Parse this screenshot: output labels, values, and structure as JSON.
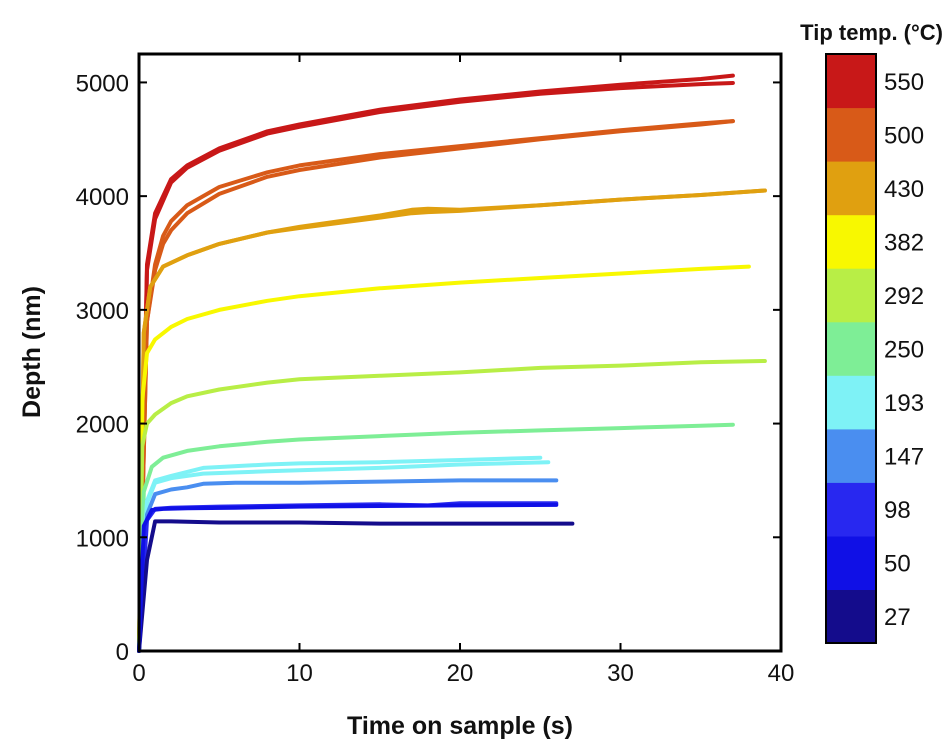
{
  "chart_data": {
    "type": "line",
    "xlabel": "Time on sample (s)",
    "ylabel": "Depth (nm)",
    "xlim": [
      0,
      40
    ],
    "ylim": [
      0,
      5250
    ],
    "x_ticks": [
      0,
      10,
      20,
      30,
      40
    ],
    "y_ticks": [
      0,
      1000,
      2000,
      3000,
      4000,
      5000
    ],
    "grid": false,
    "colorbar": {
      "title": "Tip temp. (°C)",
      "entries": [
        {
          "label": "27",
          "color": "#140c8c"
        },
        {
          "label": "50",
          "color": "#1010e6"
        },
        {
          "label": "98",
          "color": "#2828f0"
        },
        {
          "label": "147",
          "color": "#4a8ef0"
        },
        {
          "label": "193",
          "color": "#7ef2f6"
        },
        {
          "label": "250",
          "color": "#7eee96"
        },
        {
          "label": "292",
          "color": "#b8ee46"
        },
        {
          "label": "382",
          "color": "#f8f800"
        },
        {
          "label": "430",
          "color": "#e0a010"
        },
        {
          "label": "500",
          "color": "#d85a18"
        },
        {
          "label": "550",
          "color": "#c81818"
        }
      ]
    },
    "series": [
      {
        "color": "#c81818",
        "x": [
          0,
          0.5,
          1,
          2,
          3,
          5,
          8,
          10,
          15,
          20,
          25,
          30,
          35,
          37
        ],
        "y": [
          0,
          3400,
          3850,
          4150,
          4270,
          4420,
          4570,
          4630,
          4760,
          4850,
          4920,
          4980,
          5030,
          5060
        ]
      },
      {
        "color": "#c81818",
        "x": [
          0,
          0.5,
          1,
          2,
          3,
          5,
          8,
          10,
          15,
          20,
          25,
          30,
          35,
          37
        ],
        "y": [
          0,
          3350,
          3800,
          4120,
          4250,
          4400,
          4550,
          4610,
          4740,
          4830,
          4900,
          4950,
          4985,
          4995
        ]
      },
      {
        "color": "#d85a18",
        "x": [
          0,
          0.5,
          1,
          1.5,
          2,
          3,
          5,
          8,
          10,
          15,
          20,
          25,
          30,
          35,
          37
        ],
        "y": [
          0,
          2900,
          3400,
          3650,
          3780,
          3920,
          4080,
          4210,
          4270,
          4370,
          4440,
          4510,
          4580,
          4640,
          4660
        ]
      },
      {
        "color": "#d85a18",
        "x": [
          0,
          0.5,
          1,
          1.5,
          2,
          3,
          5,
          8,
          10,
          15,
          20,
          25,
          30,
          35,
          37
        ],
        "y": [
          0,
          2900,
          3350,
          3580,
          3700,
          3850,
          4020,
          4170,
          4230,
          4340,
          4420,
          4500,
          4570,
          4630,
          4660
        ]
      },
      {
        "color": "#e0a010",
        "x": [
          0,
          0.3,
          0.7,
          1.5,
          3,
          5,
          8,
          10,
          15,
          17,
          18,
          20,
          25,
          30,
          35,
          39
        ],
        "y": [
          0,
          2800,
          3200,
          3380,
          3480,
          3580,
          3680,
          3720,
          3810,
          3850,
          3860,
          3870,
          3920,
          3970,
          4010,
          4050
        ]
      },
      {
        "color": "#e0a010",
        "x": [
          0,
          0.3,
          0.7,
          1.5,
          3,
          5,
          8,
          10,
          15,
          17,
          18,
          20,
          25,
          30,
          35,
          39
        ],
        "y": [
          0,
          2800,
          3200,
          3380,
          3480,
          3580,
          3680,
          3730,
          3830,
          3880,
          3890,
          3880,
          3920,
          3970,
          4010,
          4050
        ]
      },
      {
        "color": "#f8f800",
        "x": [
          0,
          0.2,
          0.5,
          1,
          2,
          3,
          5,
          8,
          10,
          15,
          20,
          25,
          30,
          35,
          38
        ],
        "y": [
          0,
          2200,
          2620,
          2740,
          2850,
          2920,
          3000,
          3080,
          3120,
          3190,
          3240,
          3280,
          3320,
          3360,
          3380
        ]
      },
      {
        "color": "#b8ee46",
        "x": [
          0,
          0.2,
          0.5,
          1,
          2,
          3,
          5,
          8,
          10,
          15,
          20,
          25,
          30,
          35,
          39
        ],
        "y": [
          0,
          1800,
          2000,
          2080,
          2180,
          2240,
          2300,
          2360,
          2390,
          2420,
          2450,
          2490,
          2510,
          2540,
          2550
        ]
      },
      {
        "color": "#7eee96",
        "x": [
          0,
          0.3,
          0.8,
          1.5,
          3,
          5,
          8,
          10,
          15,
          20,
          25,
          30,
          35,
          37
        ],
        "y": [
          0,
          1400,
          1620,
          1700,
          1760,
          1800,
          1840,
          1860,
          1890,
          1920,
          1940,
          1960,
          1980,
          1990
        ]
      },
      {
        "color": "#7ef2f6",
        "x": [
          0,
          0.5,
          1,
          2,
          4,
          8,
          10,
          15,
          20,
          25.5
        ],
        "y": [
          0,
          1300,
          1480,
          1520,
          1560,
          1580,
          1590,
          1610,
          1640,
          1660
        ]
      },
      {
        "color": "#7ef2f6",
        "x": [
          0,
          0.5,
          1,
          2,
          4,
          8,
          10,
          15,
          20,
          25
        ],
        "y": [
          0,
          1320,
          1500,
          1540,
          1610,
          1640,
          1650,
          1660,
          1680,
          1700
        ]
      },
      {
        "color": "#4a8ef0",
        "x": [
          0,
          0.5,
          1,
          2,
          3,
          4,
          6,
          10,
          15,
          20,
          26
        ],
        "y": [
          0,
          1200,
          1380,
          1420,
          1440,
          1470,
          1480,
          1480,
          1490,
          1500,
          1500
        ]
      },
      {
        "color": "#2828f0",
        "x": [
          0,
          0.5,
          1,
          2,
          5,
          10,
          15,
          18,
          20,
          26
        ],
        "y": [
          0,
          1150,
          1250,
          1260,
          1270,
          1280,
          1290,
          1280,
          1300,
          1300
        ]
      },
      {
        "color": "#140c8c",
        "x": [
          0,
          0.5,
          1,
          2,
          5,
          10,
          15,
          20,
          25,
          27
        ],
        "y": [
          0,
          800,
          1140,
          1140,
          1130,
          1130,
          1120,
          1120,
          1120,
          1120
        ]
      },
      {
        "color": "#1010e6",
        "x": [
          0,
          0.3,
          0.8,
          1.5,
          3,
          6,
          10,
          15,
          20,
          26
        ],
        "y": [
          0,
          1100,
          1240,
          1250,
          1255,
          1260,
          1270,
          1275,
          1280,
          1285
        ]
      }
    ]
  }
}
